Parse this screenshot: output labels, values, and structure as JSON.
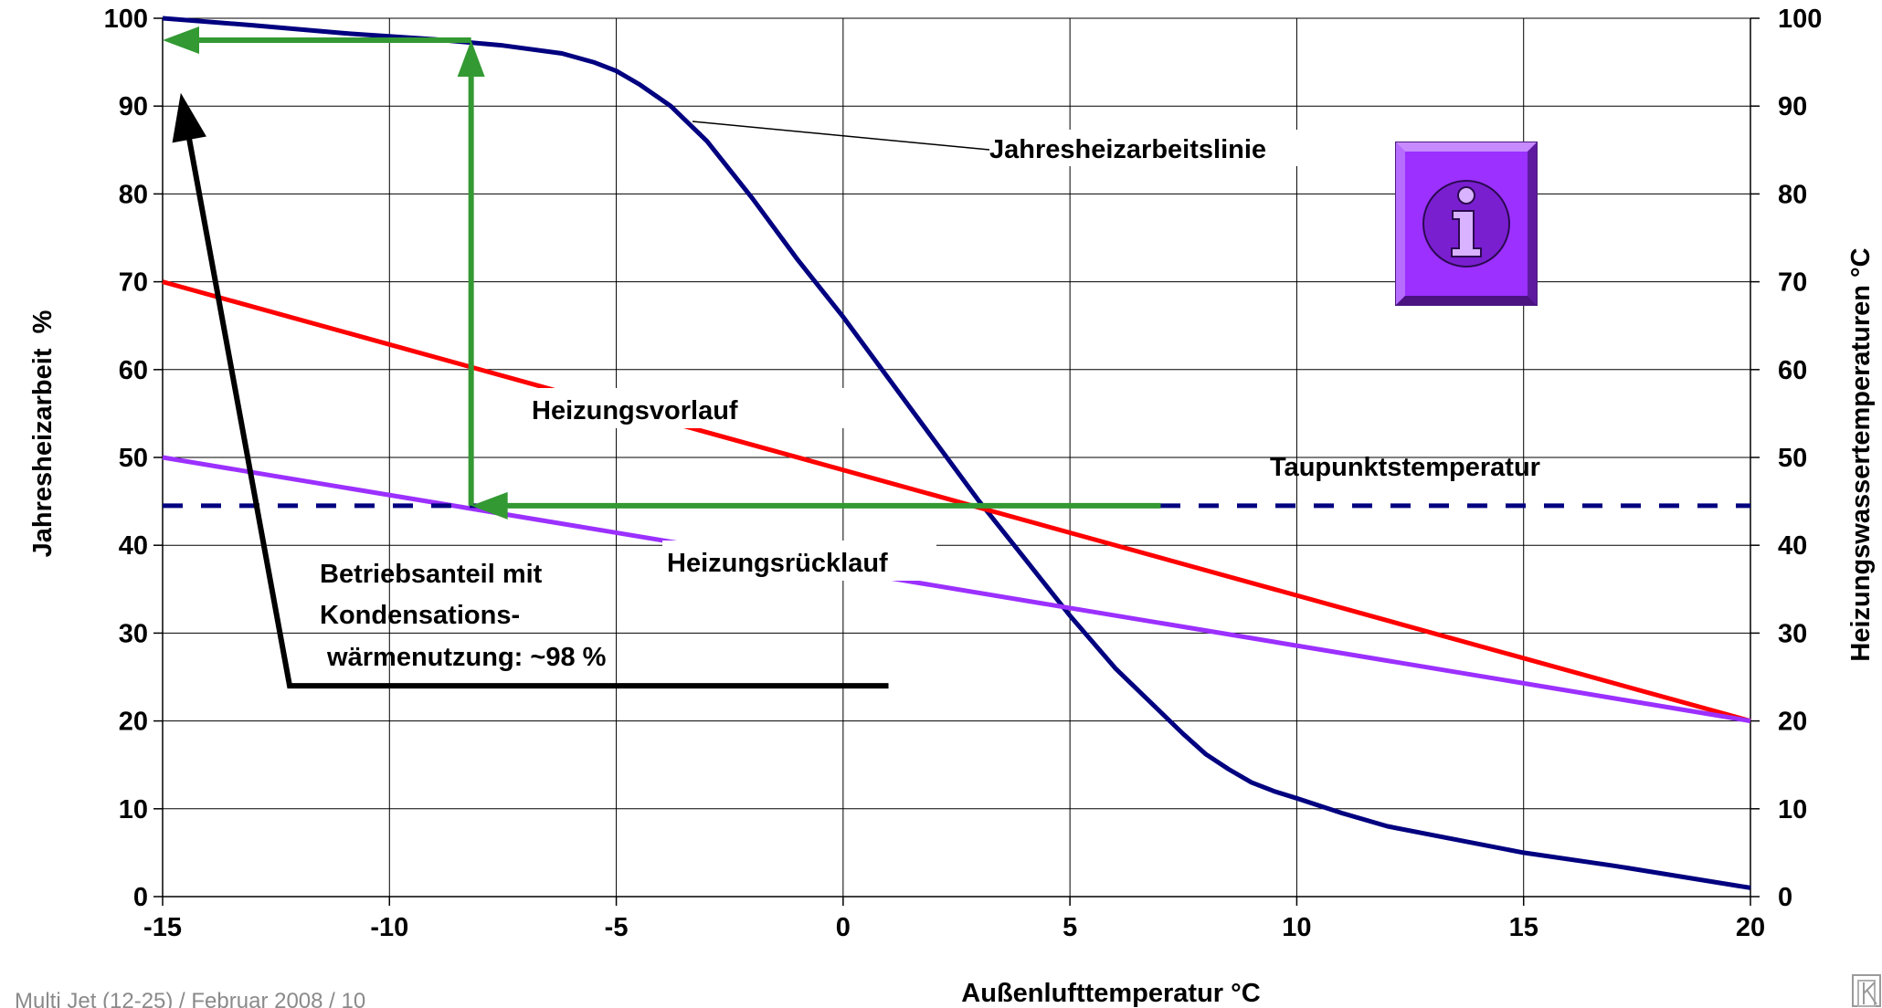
{
  "chart_data": {
    "type": "line",
    "xlabel": "Außenlufttemperatur °C",
    "ylabel": "Jahresheizarbeit  %",
    "y2label": "Heizungswassertemperaturen °C",
    "xlim": [
      -15,
      20
    ],
    "ylim": [
      0,
      100
    ],
    "y2lim": [
      0,
      100
    ],
    "x_ticks": [
      -15,
      -10,
      -5,
      0,
      5,
      10,
      15,
      20
    ],
    "y_ticks": [
      0,
      10,
      20,
      30,
      40,
      50,
      60,
      70,
      80,
      90,
      100
    ],
    "y2_ticks": [
      0,
      10,
      20,
      30,
      40,
      50,
      60,
      70,
      80,
      90,
      100
    ],
    "grid": true,
    "series": [
      {
        "name": "Jahresheizarbeitslinie",
        "color": "#000080",
        "style": "solid",
        "x": [
          -15,
          -13,
          -11,
          -9,
          -7.5,
          -6.2,
          -5.5,
          -5,
          -4.5,
          -3.8,
          -3,
          -2,
          -1,
          0,
          1,
          2,
          3,
          4,
          5,
          6,
          7,
          7.5,
          8,
          8.5,
          9,
          9.5,
          10,
          11,
          12,
          13,
          14,
          15,
          17,
          20
        ],
        "y": [
          100,
          99.2,
          98.3,
          97.6,
          96.9,
          96,
          95,
          94,
          92.5,
          90,
          86,
          79.5,
          72.5,
          66,
          59,
          52,
          45,
          38.5,
          32,
          26,
          21,
          18.5,
          16.2,
          14.5,
          13,
          12,
          11.2,
          9.5,
          8,
          7,
          6,
          5,
          3.5,
          1
        ]
      },
      {
        "name": "Heizungsvorlauf",
        "color": "#ff0000",
        "style": "solid",
        "x": [
          -15,
          20
        ],
        "y": [
          70,
          20
        ]
      },
      {
        "name": "Heizungsrücklauf",
        "color": "#9b30ff",
        "style": "solid",
        "x": [
          -15,
          20
        ],
        "y": [
          50,
          20
        ]
      },
      {
        "name": "Taupunktstemperatur",
        "color": "#000080",
        "style": "dashed",
        "x": [
          -15,
          20
        ],
        "y": [
          44.5,
          44.5
        ]
      }
    ],
    "annotation_arrows": [
      {
        "color": "#339933",
        "from": [
          7,
          44.5
        ],
        "to": [
          -8.2,
          44.5
        ]
      },
      {
        "color": "#339933",
        "from": [
          -8.2,
          44.5
        ],
        "to": [
          -8.2,
          97.5
        ]
      },
      {
        "color": "#339933",
        "from": [
          -8.2,
          97.5
        ],
        "to": [
          -15,
          97.5
        ]
      },
      {
        "color": "#000000",
        "from": [
          1,
          24
        ],
        "via": [
          -12.2,
          24
        ],
        "to": [
          -14.6,
          91.5
        ]
      }
    ],
    "annotations": {
      "jahresheizarbeitslinie": "Jahresheizarbeitslinie",
      "heizungsvorlauf": "Heizungsvorlauf",
      "heizungsruecklauf": "Heizungsrücklauf",
      "taupunktstemperatur": "Taupunktstemperatur",
      "betriebsanteil_line1": "Betriebsanteil mit",
      "betriebsanteil_line2": "Kondensations-",
      "betriebsanteil_line3": " wärmenutzung: ~98 %"
    }
  },
  "info_icon": {
    "name": "info-icon",
    "color": "#9b30ff"
  },
  "footer": {
    "text": "Multi Jet (12-25) / Februar 2008 / 10"
  },
  "logo": {
    "name": "brand-logo-corner"
  }
}
